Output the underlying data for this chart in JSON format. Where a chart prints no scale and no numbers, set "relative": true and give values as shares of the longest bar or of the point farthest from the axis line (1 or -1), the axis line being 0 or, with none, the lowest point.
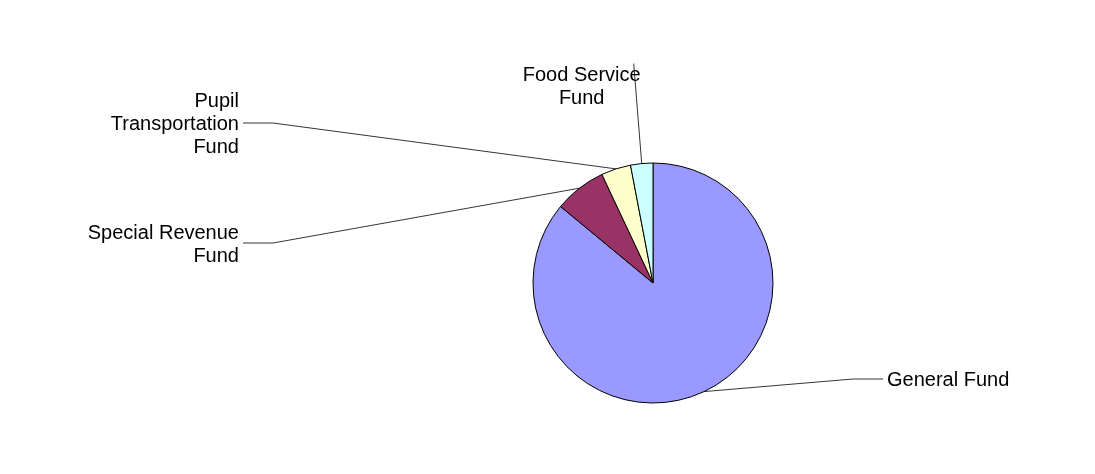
{
  "chart_data": {
    "type": "pie",
    "relative": true,
    "categories": [
      "General Fund",
      "Special Revenue Fund",
      "Pupil Transportation Fund",
      "Food Service Fund"
    ],
    "values": [
      86,
      7,
      4,
      3
    ],
    "colors": [
      "#9999ff",
      "#993366",
      "#ffffcc",
      "#ccffff"
    ],
    "legend": false
  }
}
